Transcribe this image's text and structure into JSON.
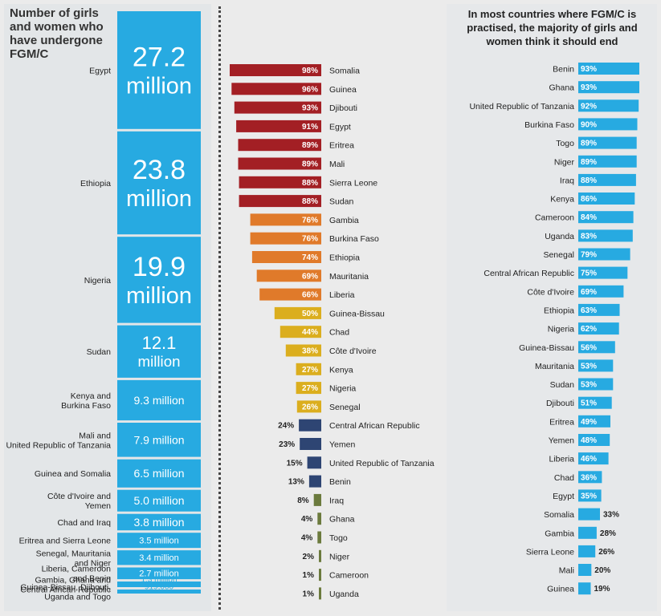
{
  "panels": {
    "left": {
      "title": "Number of girls and women who have undergone FGM/C"
    },
    "right": {
      "title": "In most countries where FGM/C is practised, the majority of girls and women think it should end"
    }
  },
  "colors": {
    "blue": "#27aae1",
    "dark_red": "#a31f24",
    "orange": "#e07a2a",
    "yellow": "#dbae1e",
    "navy": "#2e4573",
    "olive": "#6b7a3d"
  },
  "chart_data": [
    {
      "type": "bar",
      "title": "Number of girls and women who have undergone FGM/C",
      "series": [
        {
          "name": "",
          "categories": [
            "Egypt",
            "Ethiopia",
            "Nigeria",
            "Sudan",
            "Kenya and Burkina Faso",
            "Mali and United Republic of Tanzania",
            "Guinea and Somalia",
            "Côte d'Ivoire and Yemen",
            "Chad and Iraq",
            "Eritrea and Sierra Leone",
            "Senegal, Mauritania and Niger",
            "Liberia, Cameroon and Benin",
            "Gambia, Ghana and Central African Republic",
            "Guinea-Bissau, Djibouti, Uganda and Togo"
          ],
          "values": [
            27.2,
            23.8,
            19.9,
            12.1,
            9.3,
            7.9,
            6.5,
            5.0,
            3.8,
            3.5,
            3.4,
            2.7,
            1.3,
            0.919
          ]
        }
      ],
      "value_labels": [
        "27.2 million",
        "23.8 million",
        "19.9 million",
        "12.1 million",
        "9.3 million",
        "7.9 million",
        "6.5 million",
        "5.0 million",
        "3.8 million",
        "3.5 million",
        "3.4 million",
        "2.7 million",
        "1.3 million",
        "919,000"
      ],
      "unit": "million"
    },
    {
      "type": "bar",
      "title": "",
      "categories": [
        "Somalia",
        "Guinea",
        "Djibouti",
        "Egypt",
        "Eritrea",
        "Mali",
        "Sierra Leone",
        "Sudan",
        "Gambia",
        "Burkina Faso",
        "Ethiopia",
        "Mauritania",
        "Liberia",
        "Guinea-Bissau",
        "Chad",
        "Côte d'Ivoire",
        "Kenya",
        "Nigeria",
        "Senegal",
        "Central African Republic",
        "Yemen",
        "United Republic of Tanzania",
        "Benin",
        "Iraq",
        "Ghana",
        "Togo",
        "Niger",
        "Cameroon",
        "Uganda"
      ],
      "values": [
        98,
        96,
        93,
        91,
        89,
        89,
        88,
        88,
        76,
        76,
        74,
        69,
        66,
        50,
        44,
        38,
        27,
        27,
        26,
        24,
        23,
        15,
        13,
        8,
        4,
        4,
        2,
        1,
        1
      ],
      "colors": [
        "#a31f24",
        "#a31f24",
        "#a31f24",
        "#a31f24",
        "#a31f24",
        "#a31f24",
        "#a31f24",
        "#a31f24",
        "#e07a2a",
        "#e07a2a",
        "#e07a2a",
        "#e07a2a",
        "#e07a2a",
        "#dbae1e",
        "#dbae1e",
        "#dbae1e",
        "#dbae1e",
        "#dbae1e",
        "#dbae1e",
        "#2e4573",
        "#2e4573",
        "#2e4573",
        "#2e4573",
        "#6b7a3d",
        "#6b7a3d",
        "#6b7a3d",
        "#6b7a3d",
        "#6b7a3d",
        "#6b7a3d"
      ],
      "unit": "%"
    },
    {
      "type": "bar",
      "title": "In most countries where FGM/C is practised, the majority of girls and women think it should end",
      "categories": [
        "Benin",
        "Ghana",
        "United Republic of Tanzania",
        "Burkina Faso",
        "Togo",
        "Niger",
        "Iraq",
        "Kenya",
        "Cameroon",
        "Uganda",
        "Senegal",
        "Central African Republic",
        "Côte d'Ivoire",
        "Ethiopia",
        "Nigeria",
        "Guinea-Bissau",
        "Mauritania",
        "Sudan",
        "Djibouti",
        "Eritrea",
        "Yemen",
        "Liberia",
        "Chad",
        "Egypt",
        "Somalia",
        "Gambia",
        "Sierra Leone",
        "Mali",
        "Guinea"
      ],
      "values": [
        93,
        93,
        92,
        90,
        89,
        89,
        88,
        86,
        84,
        83,
        79,
        75,
        69,
        63,
        62,
        56,
        53,
        53,
        51,
        49,
        48,
        46,
        36,
        35,
        33,
        28,
        26,
        20,
        19
      ],
      "color": "#27aae1",
      "unit": "%"
    }
  ]
}
